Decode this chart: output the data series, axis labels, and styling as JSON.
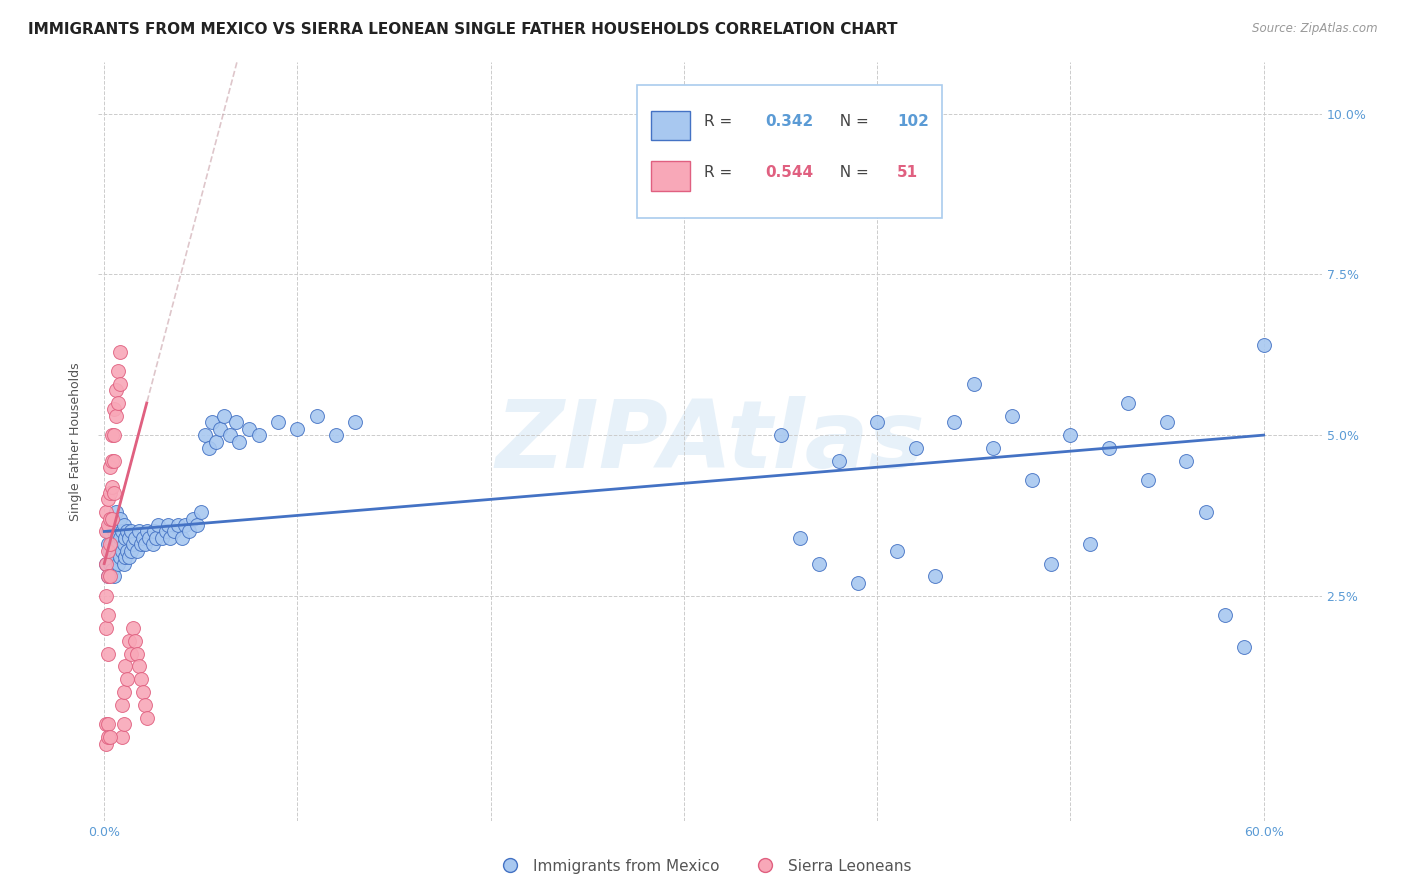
{
  "title": "IMMIGRANTS FROM MEXICO VS SIERRA LEONEAN SINGLE FATHER HOUSEHOLDS CORRELATION CHART",
  "source": "Source: ZipAtlas.com",
  "ylabel": "Single Father Households",
  "x_label_blue": "Immigrants from Mexico",
  "x_label_pink": "Sierra Leoneans",
  "blue_R": 0.342,
  "blue_N": 102,
  "pink_R": 0.544,
  "pink_N": 51,
  "blue_color": "#a8c8f0",
  "pink_color": "#f8a8b8",
  "blue_line_color": "#4472c4",
  "pink_line_color": "#e06080",
  "axis_color": "#5b9bd5",
  "watermark": "ZIPAtlas",
  "watermark_color": "#d0e4f4",
  "background_color": "#ffffff",
  "blue_scatter_x": [
    0.001,
    0.002,
    0.002,
    0.002,
    0.003,
    0.003,
    0.003,
    0.004,
    0.004,
    0.004,
    0.005,
    0.005,
    0.005,
    0.006,
    0.006,
    0.006,
    0.007,
    0.007,
    0.007,
    0.008,
    0.008,
    0.008,
    0.009,
    0.009,
    0.01,
    0.01,
    0.01,
    0.011,
    0.011,
    0.012,
    0.012,
    0.013,
    0.013,
    0.014,
    0.014,
    0.015,
    0.016,
    0.017,
    0.018,
    0.019,
    0.02,
    0.021,
    0.022,
    0.023,
    0.025,
    0.026,
    0.027,
    0.028,
    0.03,
    0.032,
    0.033,
    0.034,
    0.036,
    0.038,
    0.04,
    0.042,
    0.044,
    0.046,
    0.048,
    0.05,
    0.052,
    0.054,
    0.056,
    0.058,
    0.06,
    0.062,
    0.065,
    0.068,
    0.07,
    0.075,
    0.08,
    0.09,
    0.1,
    0.11,
    0.12,
    0.13,
    0.35,
    0.38,
    0.4,
    0.42,
    0.44,
    0.45,
    0.46,
    0.47,
    0.48,
    0.5,
    0.52,
    0.53,
    0.54,
    0.55,
    0.56,
    0.57,
    0.58,
    0.59,
    0.6,
    0.36,
    0.37,
    0.39,
    0.41,
    0.43,
    0.49,
    0.51
  ],
  "blue_scatter_y": [
    0.03,
    0.028,
    0.033,
    0.035,
    0.03,
    0.032,
    0.036,
    0.029,
    0.033,
    0.037,
    0.028,
    0.032,
    0.035,
    0.031,
    0.034,
    0.038,
    0.03,
    0.033,
    0.036,
    0.031,
    0.034,
    0.037,
    0.032,
    0.035,
    0.03,
    0.033,
    0.036,
    0.031,
    0.034,
    0.032,
    0.035,
    0.031,
    0.034,
    0.032,
    0.035,
    0.033,
    0.034,
    0.032,
    0.035,
    0.033,
    0.034,
    0.033,
    0.035,
    0.034,
    0.033,
    0.035,
    0.034,
    0.036,
    0.034,
    0.035,
    0.036,
    0.034,
    0.035,
    0.036,
    0.034,
    0.036,
    0.035,
    0.037,
    0.036,
    0.038,
    0.05,
    0.048,
    0.052,
    0.049,
    0.051,
    0.053,
    0.05,
    0.052,
    0.049,
    0.051,
    0.05,
    0.052,
    0.051,
    0.053,
    0.05,
    0.052,
    0.05,
    0.046,
    0.052,
    0.048,
    0.052,
    0.058,
    0.048,
    0.053,
    0.043,
    0.05,
    0.048,
    0.055,
    0.043,
    0.052,
    0.046,
    0.038,
    0.022,
    0.017,
    0.064,
    0.034,
    0.03,
    0.027,
    0.032,
    0.028,
    0.03,
    0.033
  ],
  "pink_scatter_x": [
    0.001,
    0.001,
    0.001,
    0.001,
    0.001,
    0.002,
    0.002,
    0.002,
    0.002,
    0.002,
    0.002,
    0.003,
    0.003,
    0.003,
    0.003,
    0.003,
    0.004,
    0.004,
    0.004,
    0.004,
    0.005,
    0.005,
    0.005,
    0.005,
    0.006,
    0.006,
    0.007,
    0.007,
    0.008,
    0.008,
    0.009,
    0.009,
    0.01,
    0.01,
    0.011,
    0.012,
    0.013,
    0.014,
    0.015,
    0.016,
    0.017,
    0.018,
    0.019,
    0.02,
    0.021,
    0.022,
    0.001,
    0.001,
    0.002,
    0.002,
    0.003
  ],
  "pink_scatter_y": [
    0.038,
    0.035,
    0.03,
    0.025,
    0.02,
    0.04,
    0.036,
    0.032,
    0.028,
    0.022,
    0.016,
    0.045,
    0.041,
    0.037,
    0.033,
    0.028,
    0.05,
    0.046,
    0.042,
    0.037,
    0.054,
    0.05,
    0.046,
    0.041,
    0.057,
    0.053,
    0.06,
    0.055,
    0.063,
    0.058,
    0.003,
    0.008,
    0.01,
    0.005,
    0.014,
    0.012,
    0.018,
    0.016,
    0.02,
    0.018,
    0.016,
    0.014,
    0.012,
    0.01,
    0.008,
    0.006,
    0.005,
    0.002,
    0.005,
    0.003,
    0.003
  ],
  "title_fontsize": 11,
  "axis_label_fontsize": 9,
  "tick_fontsize": 9
}
